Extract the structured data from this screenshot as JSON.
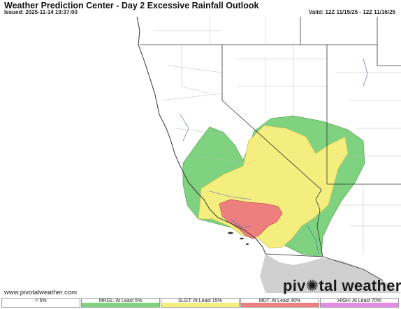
{
  "header": {
    "title": "Weather Prediction Center - Day 2 Excessive Rainfall Outlook",
    "issued": "Issued: 2025-11-14 19:37:00",
    "valid": "Valid: 12Z 11/15/25 - 12Z 11/16/25"
  },
  "footer": {
    "credit": "www.pivotalweather.com",
    "logo_left": "piv",
    "logo_right": "tal weather"
  },
  "legend": [
    {
      "label": "< 5%",
      "color": "#ffffff"
    },
    {
      "label": "MRGL: At Least 5%",
      "color": "#7fd27f"
    },
    {
      "label": "SLGT: At Least 15%",
      "color": "#f4ee7f"
    },
    {
      "label": "MDT: At Least 40%",
      "color": "#ee7f7f"
    },
    {
      "label": "HIGH: At Least 70%",
      "color": "#e38ce3"
    }
  ],
  "map": {
    "risk_areas": [
      "MRGL",
      "SLGT",
      "MDT"
    ]
  }
}
